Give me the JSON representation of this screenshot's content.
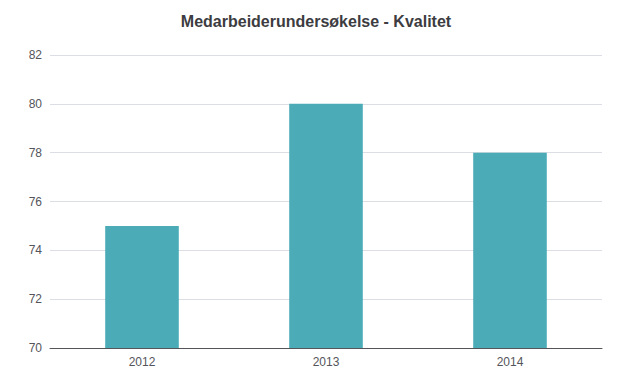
{
  "chart_data": {
    "type": "bar",
    "title": "Medarbeiderundersøkelse - Kvalitet",
    "categories": [
      "2012",
      "2013",
      "2014"
    ],
    "values": [
      75,
      80,
      78
    ],
    "color": "#4BACB8",
    "ylim": [
      70,
      82
    ],
    "yticks": [
      70,
      72,
      74,
      76,
      78,
      80,
      82
    ],
    "grid": true
  }
}
